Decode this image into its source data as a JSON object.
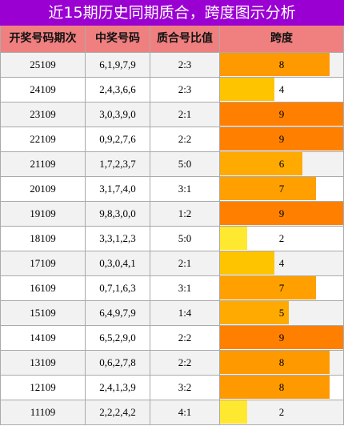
{
  "title": "近15期历史同期质合，跨度图示分析",
  "table": {
    "headers": [
      "开奖号码期次",
      "中奖号码",
      "质合号比值",
      "跨度"
    ],
    "rows": [
      {
        "period": "25109",
        "numbers": "6,1,9,7,9",
        "ratio": "2:3",
        "span": 8,
        "color": "#ff9900"
      },
      {
        "period": "24109",
        "numbers": "2,4,3,6,6",
        "ratio": "2:3",
        "span": 4,
        "color": "#ffc400"
      },
      {
        "period": "23109",
        "numbers": "3,0,3,9,0",
        "ratio": "2:1",
        "span": 9,
        "color": "#ff8000"
      },
      {
        "period": "22109",
        "numbers": "0,9,2,7,6",
        "ratio": "2:2",
        "span": 9,
        "color": "#ff8000"
      },
      {
        "period": "21109",
        "numbers": "1,7,2,3,7",
        "ratio": "5:0",
        "span": 6,
        "color": "#ffaa00"
      },
      {
        "period": "20109",
        "numbers": "3,1,7,4,0",
        "ratio": "3:1",
        "span": 7,
        "color": "#ffa000"
      },
      {
        "period": "19109",
        "numbers": "9,8,3,0,0",
        "ratio": "1:2",
        "span": 9,
        "color": "#ff8000"
      },
      {
        "period": "18109",
        "numbers": "3,3,1,2,3",
        "ratio": "5:0",
        "span": 2,
        "color": "#ffe830"
      },
      {
        "period": "17109",
        "numbers": "0,3,0,4,1",
        "ratio": "2:1",
        "span": 4,
        "color": "#ffc400"
      },
      {
        "period": "16109",
        "numbers": "0,7,1,6,3",
        "ratio": "3:1",
        "span": 7,
        "color": "#ffa000"
      },
      {
        "period": "15109",
        "numbers": "6,4,9,7,9",
        "ratio": "1:4",
        "span": 5,
        "color": "#ffaa00"
      },
      {
        "period": "14109",
        "numbers": "6,5,2,9,0",
        "ratio": "2:2",
        "span": 9,
        "color": "#ff8000"
      },
      {
        "period": "13109",
        "numbers": "0,6,2,7,8",
        "ratio": "2:2",
        "span": 8,
        "color": "#ff9900"
      },
      {
        "period": "12109",
        "numbers": "2,4,1,3,9",
        "ratio": "3:2",
        "span": 8,
        "color": "#ff9900"
      },
      {
        "period": "11109",
        "numbers": "2,2,2,4,2",
        "ratio": "4:1",
        "span": 2,
        "color": "#ffe830"
      }
    ]
  }
}
